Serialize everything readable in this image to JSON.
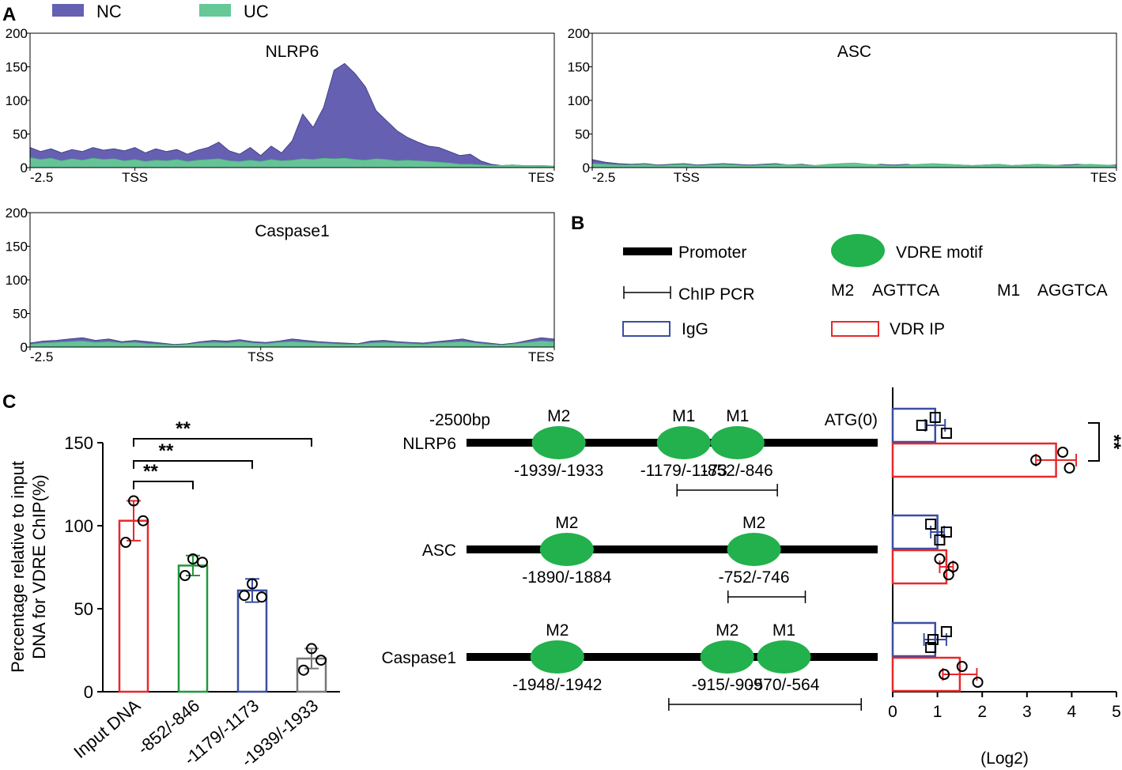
{
  "figure": {
    "panel_labels": [
      "A",
      "B",
      "C"
    ],
    "legend_a": [
      {
        "label": "NC",
        "color": "#6560b2"
      },
      {
        "label": "UC",
        "color": "#66c896"
      }
    ],
    "legend_b": {
      "promoter": "Promoter",
      "vdre_motif": "VDRE motif",
      "chip_pcr": "ChIP PCR",
      "m2_label": "M2",
      "m2_seq": "AGTTCA",
      "m1_label": "M1",
      "m1_seq": "AGGTCA",
      "igg": "IgG",
      "vdr_ip": "VDR IP"
    },
    "colors": {
      "nc": "#6560b2",
      "uc": "#66c896",
      "motif": "#22b14c",
      "igg": "#3b4ea3",
      "vdr": "#e8282b",
      "red": "#e8282b",
      "green": "#22973c",
      "blue": "#3b4ea3",
      "gray": "#777777"
    }
  },
  "chart_data": [
    {
      "type": "area",
      "title": "NLRP6",
      "xlabels": [
        "-2.5",
        "TSS",
        "TES"
      ],
      "ylim": [
        0,
        200
      ],
      "yticks": [
        0,
        50,
        100,
        150,
        200
      ],
      "x": [
        0,
        0.02,
        0.04,
        0.06,
        0.08,
        0.1,
        0.12,
        0.14,
        0.16,
        0.18,
        0.2,
        0.22,
        0.24,
        0.26,
        0.28,
        0.3,
        0.32,
        0.34,
        0.36,
        0.38,
        0.4,
        0.42,
        0.44,
        0.46,
        0.48,
        0.5,
        0.52,
        0.54,
        0.56,
        0.58,
        0.6,
        0.62,
        0.64,
        0.66,
        0.68,
        0.7,
        0.72,
        0.74,
        0.76,
        0.78,
        0.8,
        0.82,
        0.84,
        0.86,
        0.88,
        0.9,
        0.92,
        0.94,
        0.96,
        0.98,
        1
      ],
      "series": [
        {
          "name": "NC",
          "values": [
            30,
            24,
            28,
            22,
            27,
            24,
            30,
            26,
            28,
            25,
            30,
            22,
            28,
            24,
            27,
            20,
            26,
            30,
            38,
            25,
            20,
            30,
            18,
            32,
            22,
            40,
            80,
            60,
            90,
            145,
            155,
            140,
            120,
            85,
            70,
            55,
            45,
            38,
            32,
            30,
            24,
            18,
            20,
            10,
            5,
            3,
            4,
            3,
            3,
            2,
            2
          ]
        },
        {
          "name": "UC",
          "values": [
            15,
            12,
            14,
            10,
            13,
            11,
            14,
            12,
            13,
            10,
            12,
            9,
            11,
            10,
            12,
            9,
            11,
            12,
            13,
            10,
            9,
            11,
            9,
            12,
            10,
            11,
            13,
            12,
            14,
            13,
            14,
            12,
            11,
            13,
            12,
            10,
            11,
            10,
            9,
            8,
            7,
            5,
            5,
            4,
            3,
            3,
            4,
            3,
            3,
            3,
            2
          ]
        }
      ]
    },
    {
      "type": "area",
      "title": "ASC",
      "xlabels": [
        "-2.5",
        "TSS",
        "TES"
      ],
      "ylim": [
        0,
        200
      ],
      "yticks": [
        0,
        50,
        100,
        150,
        200
      ],
      "x": [
        0,
        0.025,
        0.05,
        0.075,
        0.1,
        0.125,
        0.15,
        0.175,
        0.2,
        0.225,
        0.25,
        0.275,
        0.3,
        0.325,
        0.35,
        0.375,
        0.4,
        0.425,
        0.45,
        0.475,
        0.5,
        0.525,
        0.55,
        0.575,
        0.6,
        0.625,
        0.65,
        0.675,
        0.7,
        0.725,
        0.75,
        0.775,
        0.8,
        0.825,
        0.85,
        0.875,
        0.9,
        0.925,
        0.95,
        0.975,
        1
      ],
      "series": [
        {
          "name": "NC",
          "values": [
            12,
            8,
            6,
            5,
            6,
            4,
            5,
            6,
            4,
            5,
            6,
            5,
            4,
            5,
            6,
            4,
            5,
            3,
            4,
            5,
            4,
            3,
            5,
            4,
            5,
            3,
            4,
            5,
            4,
            3,
            4,
            5,
            3,
            4,
            5,
            3,
            4,
            5,
            4,
            3,
            4
          ]
        },
        {
          "name": "UC",
          "values": [
            6,
            5,
            4,
            4,
            5,
            3,
            4,
            5,
            3,
            4,
            5,
            4,
            3,
            4,
            5,
            4,
            4,
            3,
            5,
            6,
            7,
            5,
            4,
            3,
            4,
            5,
            6,
            5,
            4,
            3,
            4,
            5,
            3,
            4,
            5,
            4,
            3,
            4,
            5,
            4,
            3
          ]
        }
      ]
    },
    {
      "type": "area",
      "title": "Caspase1",
      "xlabels": [
        "-2.5",
        "TSS",
        "TES"
      ],
      "ylim": [
        0,
        200
      ],
      "yticks": [
        0,
        50,
        100,
        150,
        200
      ],
      "x": [
        0,
        0.025,
        0.05,
        0.075,
        0.1,
        0.125,
        0.15,
        0.175,
        0.2,
        0.225,
        0.25,
        0.275,
        0.3,
        0.325,
        0.35,
        0.375,
        0.4,
        0.425,
        0.45,
        0.475,
        0.5,
        0.525,
        0.55,
        0.575,
        0.6,
        0.625,
        0.65,
        0.675,
        0.7,
        0.725,
        0.75,
        0.775,
        0.8,
        0.825,
        0.85,
        0.875,
        0.9,
        0.925,
        0.95,
        0.975,
        1
      ],
      "series": [
        {
          "name": "NC",
          "values": [
            6,
            9,
            10,
            12,
            14,
            10,
            12,
            8,
            10,
            8,
            6,
            4,
            5,
            8,
            10,
            9,
            11,
            8,
            7,
            9,
            12,
            10,
            8,
            7,
            6,
            5,
            9,
            10,
            8,
            7,
            6,
            8,
            10,
            12,
            8,
            6,
            4,
            6,
            10,
            14,
            12
          ]
        },
        {
          "name": "UC",
          "values": [
            4,
            6,
            7,
            8,
            9,
            7,
            8,
            6,
            7,
            5,
            4,
            3,
            4,
            6,
            7,
            6,
            8,
            6,
            5,
            7,
            8,
            7,
            6,
            5,
            4,
            4,
            6,
            7,
            6,
            5,
            4,
            6,
            7,
            8,
            6,
            4,
            3,
            5,
            7,
            9,
            8
          ]
        }
      ]
    },
    {
      "type": "bar",
      "ylabel": "Percentage relative to input DNA for VDRE ChIP(%)",
      "categories": [
        "Input DNA",
        "-852/-846",
        "-1179/-1173",
        "-1939/-1933"
      ],
      "values": [
        103,
        76,
        61,
        20
      ],
      "errors": [
        12,
        6,
        7,
        6
      ],
      "points": [
        [
          115,
          103,
          90
        ],
        [
          80,
          78,
          70
        ],
        [
          65,
          57,
          58
        ],
        [
          26,
          19,
          13
        ]
      ],
      "ylim": [
        0,
        150
      ],
      "yticks": [
        0,
        50,
        100,
        150
      ],
      "significance": [
        {
          "label": "**",
          "from": 0,
          "to": 1
        },
        {
          "label": "**",
          "from": 0,
          "to": 2
        },
        {
          "label": "**",
          "from": 0,
          "to": 3
        }
      ]
    },
    {
      "type": "diagram",
      "start_label": "-2500bp",
      "end_label": "ATG(0)",
      "genes": [
        {
          "name": "NLRP6",
          "motifs": [
            {
              "id": "M2",
              "pos": "-1939/-1933",
              "bp": -1939
            },
            {
              "id": "M1",
              "pos": "-1179/-1173",
              "bp": -1179
            },
            {
              "id": "M1",
              "pos": "-852/-846",
              "bp": -852
            }
          ],
          "pcr": [
            -1220,
            -610
          ]
        },
        {
          "name": "ASC",
          "motifs": [
            {
              "id": "M2",
              "pos": "-1890/-1884",
              "bp": -1890
            },
            {
              "id": "M2",
              "pos": "-752/-746",
              "bp": -752
            }
          ],
          "pcr": [
            -910,
            -440
          ]
        },
        {
          "name": "Caspase1",
          "motifs": [
            {
              "id": "M2",
              "pos": "-1948/-1942",
              "bp": -1948
            },
            {
              "id": "M2",
              "pos": "-915/-909",
              "bp": -915
            },
            {
              "id": "M1",
              "pos": "-570/-564",
              "bp": -570
            }
          ],
          "pcr": [
            -1270,
            -100
          ]
        }
      ]
    },
    {
      "type": "bar",
      "orientation": "horizontal",
      "xlabel": "(Log2)",
      "xlim": [
        0,
        5
      ],
      "xticks": [
        0,
        1,
        2,
        3,
        4,
        5
      ],
      "groups": [
        {
          "gene": "NLRP6",
          "igg": {
            "value": 0.95,
            "error": 0.22,
            "points": [
              0.65,
              0.95,
              1.2
            ]
          },
          "vdr": {
            "value": 3.65,
            "error": 0.45,
            "points": [
              3.2,
              3.8,
              3.95
            ]
          },
          "significance": "**"
        },
        {
          "gene": "ASC",
          "igg": {
            "value": 1.0,
            "error": 0.15,
            "points": [
              1.2,
              0.85,
              1.05
            ]
          },
          "vdr": {
            "value": 1.2,
            "error": 0.15,
            "points": [
              1.35,
              1.05,
              1.25
            ]
          }
        },
        {
          "gene": "Caspase1",
          "igg": {
            "value": 0.95,
            "error": 0.25,
            "points": [
              0.9,
              1.2,
              0.85
            ]
          },
          "vdr": {
            "value": 1.5,
            "error": 0.38,
            "points": [
              1.15,
              1.55,
              1.9
            ]
          }
        }
      ]
    }
  ]
}
